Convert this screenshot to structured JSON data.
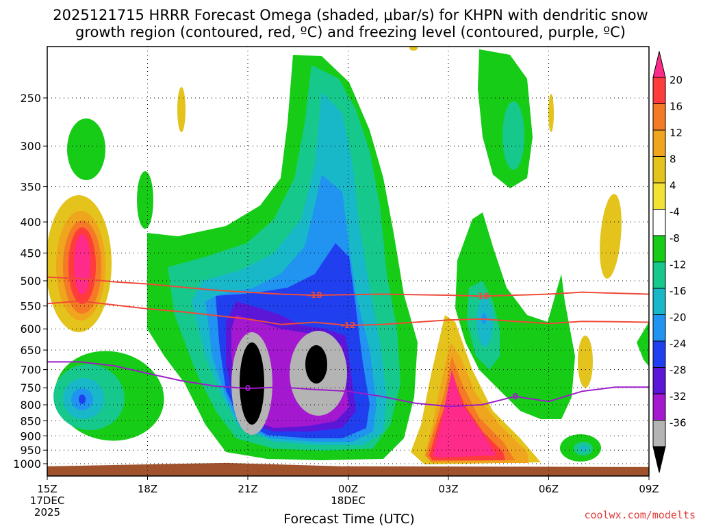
{
  "chart_data": {
    "type": "heatmap",
    "title_line1": "2025121715 HRRR Forecast Omega (shaded, μbar/s) for KHPN with dendritic snow",
    "title_line2": "growth region (contoured, red, ºC) and freezing level (contoured, purple, ºC)",
    "xlabel": "Forecast Time (UTC)",
    "ylabel": "",
    "credit": "coolwx.com/modelts",
    "x_ticks": [
      {
        "hours": 0,
        "label": "15Z",
        "sub1": "17DEC",
        "sub2": "2025"
      },
      {
        "hours": 3,
        "label": "18Z",
        "sub1": "",
        "sub2": ""
      },
      {
        "hours": 6,
        "label": "21Z",
        "sub1": "",
        "sub2": ""
      },
      {
        "hours": 9,
        "label": "00Z",
        "sub1": "18DEC",
        "sub2": ""
      },
      {
        "hours": 12,
        "label": "03Z",
        "sub1": "",
        "sub2": ""
      },
      {
        "hours": 15,
        "label": "06Z",
        "sub1": "",
        "sub2": ""
      },
      {
        "hours": 18,
        "label": "09Z",
        "sub1": "",
        "sub2": ""
      }
    ],
    "xlim": [
      0,
      18
    ],
    "y_ticks": [
      250,
      300,
      350,
      400,
      450,
      500,
      550,
      600,
      650,
      700,
      750,
      800,
      850,
      900,
      950,
      1000
    ],
    "ylim": [
      200,
      1025
    ],
    "colorbar": {
      "labels": [
        "20",
        "16",
        "12",
        "8",
        "4",
        "-4",
        "-8",
        "-12",
        "-16",
        "-20",
        "-24",
        "-28",
        "-32",
        "-36"
      ],
      "colors_top_to_bottom": [
        "#ff2b8a",
        "#ff3b3b",
        "#f47a25",
        "#f0a51e",
        "#e3c31c",
        "#f2e233",
        "#ffffff",
        "#16cc16",
        "#16c88c",
        "#18b8c8",
        "#2094f0",
        "#2040f0",
        "#5b16d8",
        "#a418d0",
        "#b4b4b4",
        "#000000"
      ]
    },
    "omega_features": [
      {
        "name": "upper-left-strong-upward",
        "t": 1.0,
        "p": 460,
        "max_value": 20
      },
      {
        "name": "mid-morning-upward-core-1",
        "t": 6.1,
        "p": 740,
        "min_value": -36
      },
      {
        "name": "mid-morning-upward-core-2",
        "t": 8.0,
        "p": 700,
        "min_value": -36
      },
      {
        "name": "overnight-downward-core",
        "t": 12.0,
        "p": 880,
        "max_value": 20
      },
      {
        "name": "lower-left-upward",
        "t": 1.0,
        "p": 780,
        "min_value": -20
      }
    ],
    "dgz_top": {
      "label": "-18",
      "color": "#ef4a3a",
      "t": [
        0,
        1,
        2,
        3,
        4,
        5,
        6,
        7,
        8,
        9,
        10,
        11,
        12,
        13,
        14,
        15,
        16,
        17,
        18
      ],
      "p": [
        493,
        496,
        502,
        506,
        512,
        518,
        522,
        526,
        528,
        527,
        526,
        527,
        528,
        530,
        528,
        526,
        522,
        524,
        526
      ]
    },
    "dgz_bottom": {
      "label": "-12",
      "color": "#ef4a3a",
      "t": [
        0,
        1,
        2,
        3,
        4,
        5,
        6,
        7,
        8,
        9,
        10,
        11,
        12,
        13,
        14,
        15,
        16,
        17,
        18
      ],
      "p": [
        545,
        540,
        548,
        556,
        562,
        570,
        578,
        590,
        585,
        592,
        590,
        585,
        580,
        578,
        583,
        588,
        583,
        584,
        585
      ]
    },
    "freezing_level": {
      "label": "0",
      "color": "#9c1cc8",
      "t": [
        0,
        1,
        2,
        3,
        4,
        5,
        6,
        7,
        8,
        9,
        10,
        11,
        12,
        13,
        14,
        15,
        16,
        17,
        18
      ],
      "p": [
        680,
        680,
        690,
        710,
        730,
        745,
        752,
        748,
        755,
        760,
        775,
        795,
        805,
        800,
        775,
        790,
        760,
        748,
        748
      ]
    },
    "ground": {
      "color": "#a0522d",
      "p_top": 1010
    }
  }
}
